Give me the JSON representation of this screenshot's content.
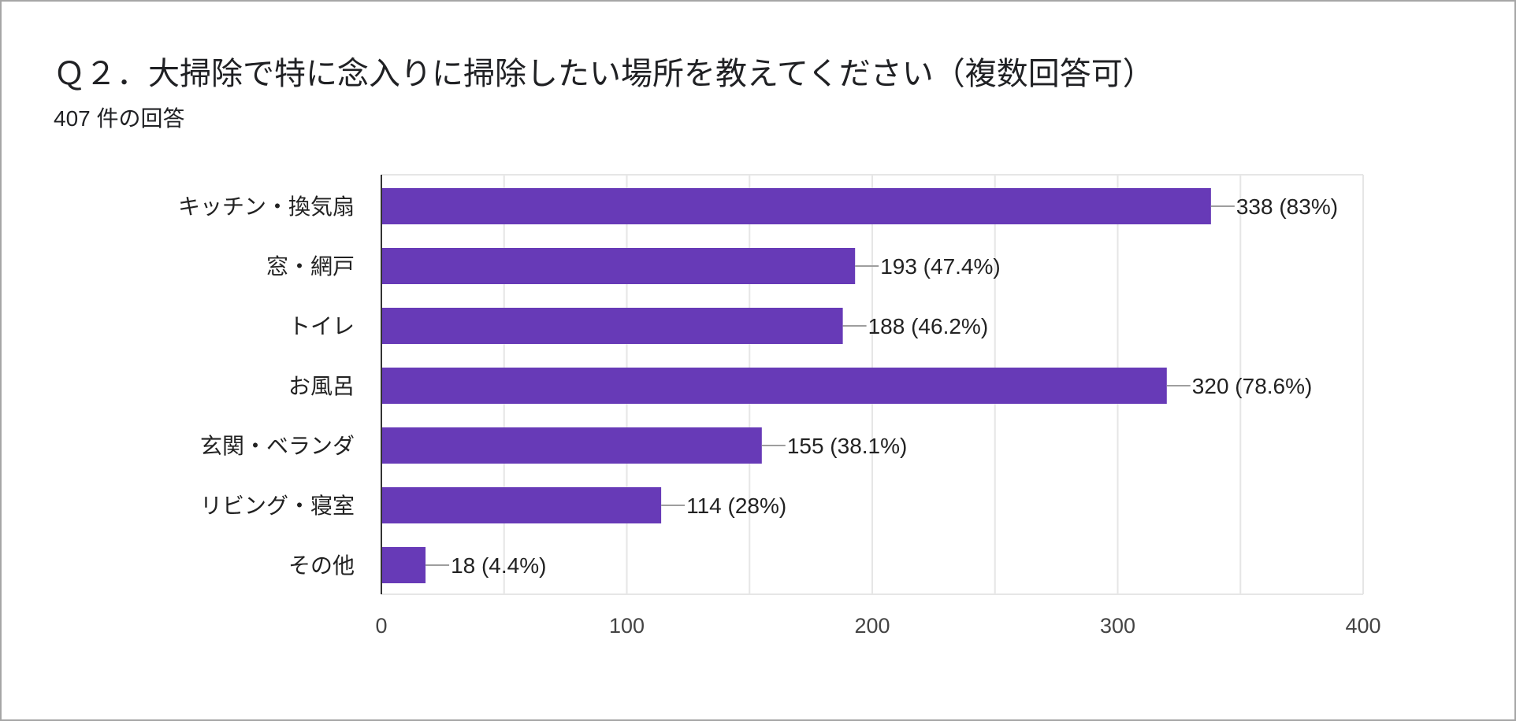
{
  "header": {
    "title": "Ｑ２．大掃除で特に念入りに掃除したい場所を教えてください（複数回答可）",
    "response_count": "407 件の回答"
  },
  "colors": {
    "bar": "#673ab7",
    "grid": "#e6e6e6",
    "axis": "#333333",
    "leader": "#9e9e9e"
  },
  "chart_data": {
    "type": "bar",
    "orientation": "horizontal",
    "title": "Ｑ２．大掃除で特に念入りに掃除したい場所を教えてください（複数回答可）",
    "subtitle": "407 件の回答",
    "categories": [
      "キッチン・換気扇",
      "窓・網戸",
      "トイレ",
      "お風呂",
      "玄関・ベランダ",
      "リビング・寝室",
      "その他"
    ],
    "values": [
      338,
      193,
      188,
      320,
      155,
      114,
      18
    ],
    "value_labels": [
      "338 (83%)",
      "193 (47.4%)",
      "188 (46.2%)",
      "320 (78.6%)",
      "155 (38.1%)",
      "114 (28%)",
      "18 (4.4%)"
    ],
    "xlim": [
      0,
      400
    ],
    "x_ticks": [
      0,
      100,
      200,
      300,
      400
    ],
    "grid": true,
    "legend": "none"
  }
}
